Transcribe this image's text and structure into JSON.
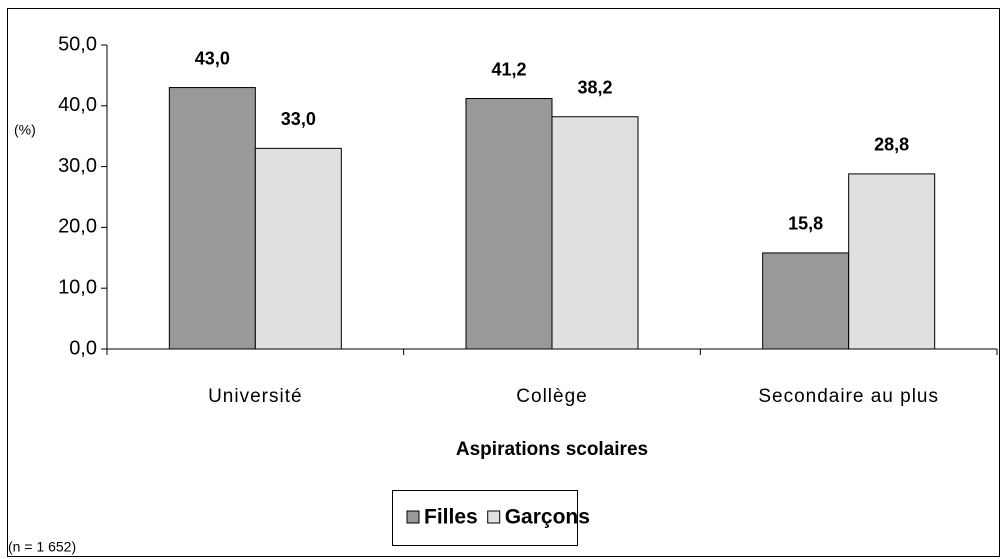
{
  "chart_data": {
    "type": "bar",
    "y_label": "(%)",
    "x_label": "Aspirations scolaires",
    "note": "(n = 1 652)",
    "categories": [
      "Université",
      "Collège",
      "Secondaire au plus"
    ],
    "series": [
      {
        "name": "Filles",
        "color": "#999999",
        "values": [
          43.0,
          41.2,
          15.8
        ],
        "value_labels": [
          "43,0",
          "41,2",
          "15,8"
        ]
      },
      {
        "name": "Garçons",
        "color": "#e0e0e0",
        "values": [
          33.0,
          38.2,
          28.8
        ],
        "value_labels": [
          "33,0",
          "38,2",
          "28,8"
        ]
      }
    ],
    "ylim": [
      0,
      50
    ],
    "yticks": [
      {
        "value": 0,
        "label": "0,0"
      },
      {
        "value": 10,
        "label": "10,0"
      },
      {
        "value": 20,
        "label": "20,0"
      },
      {
        "value": 30,
        "label": "30,0"
      },
      {
        "value": 40,
        "label": "40,0"
      },
      {
        "value": 50,
        "label": "50,0"
      }
    ],
    "legend": "bottom"
  }
}
